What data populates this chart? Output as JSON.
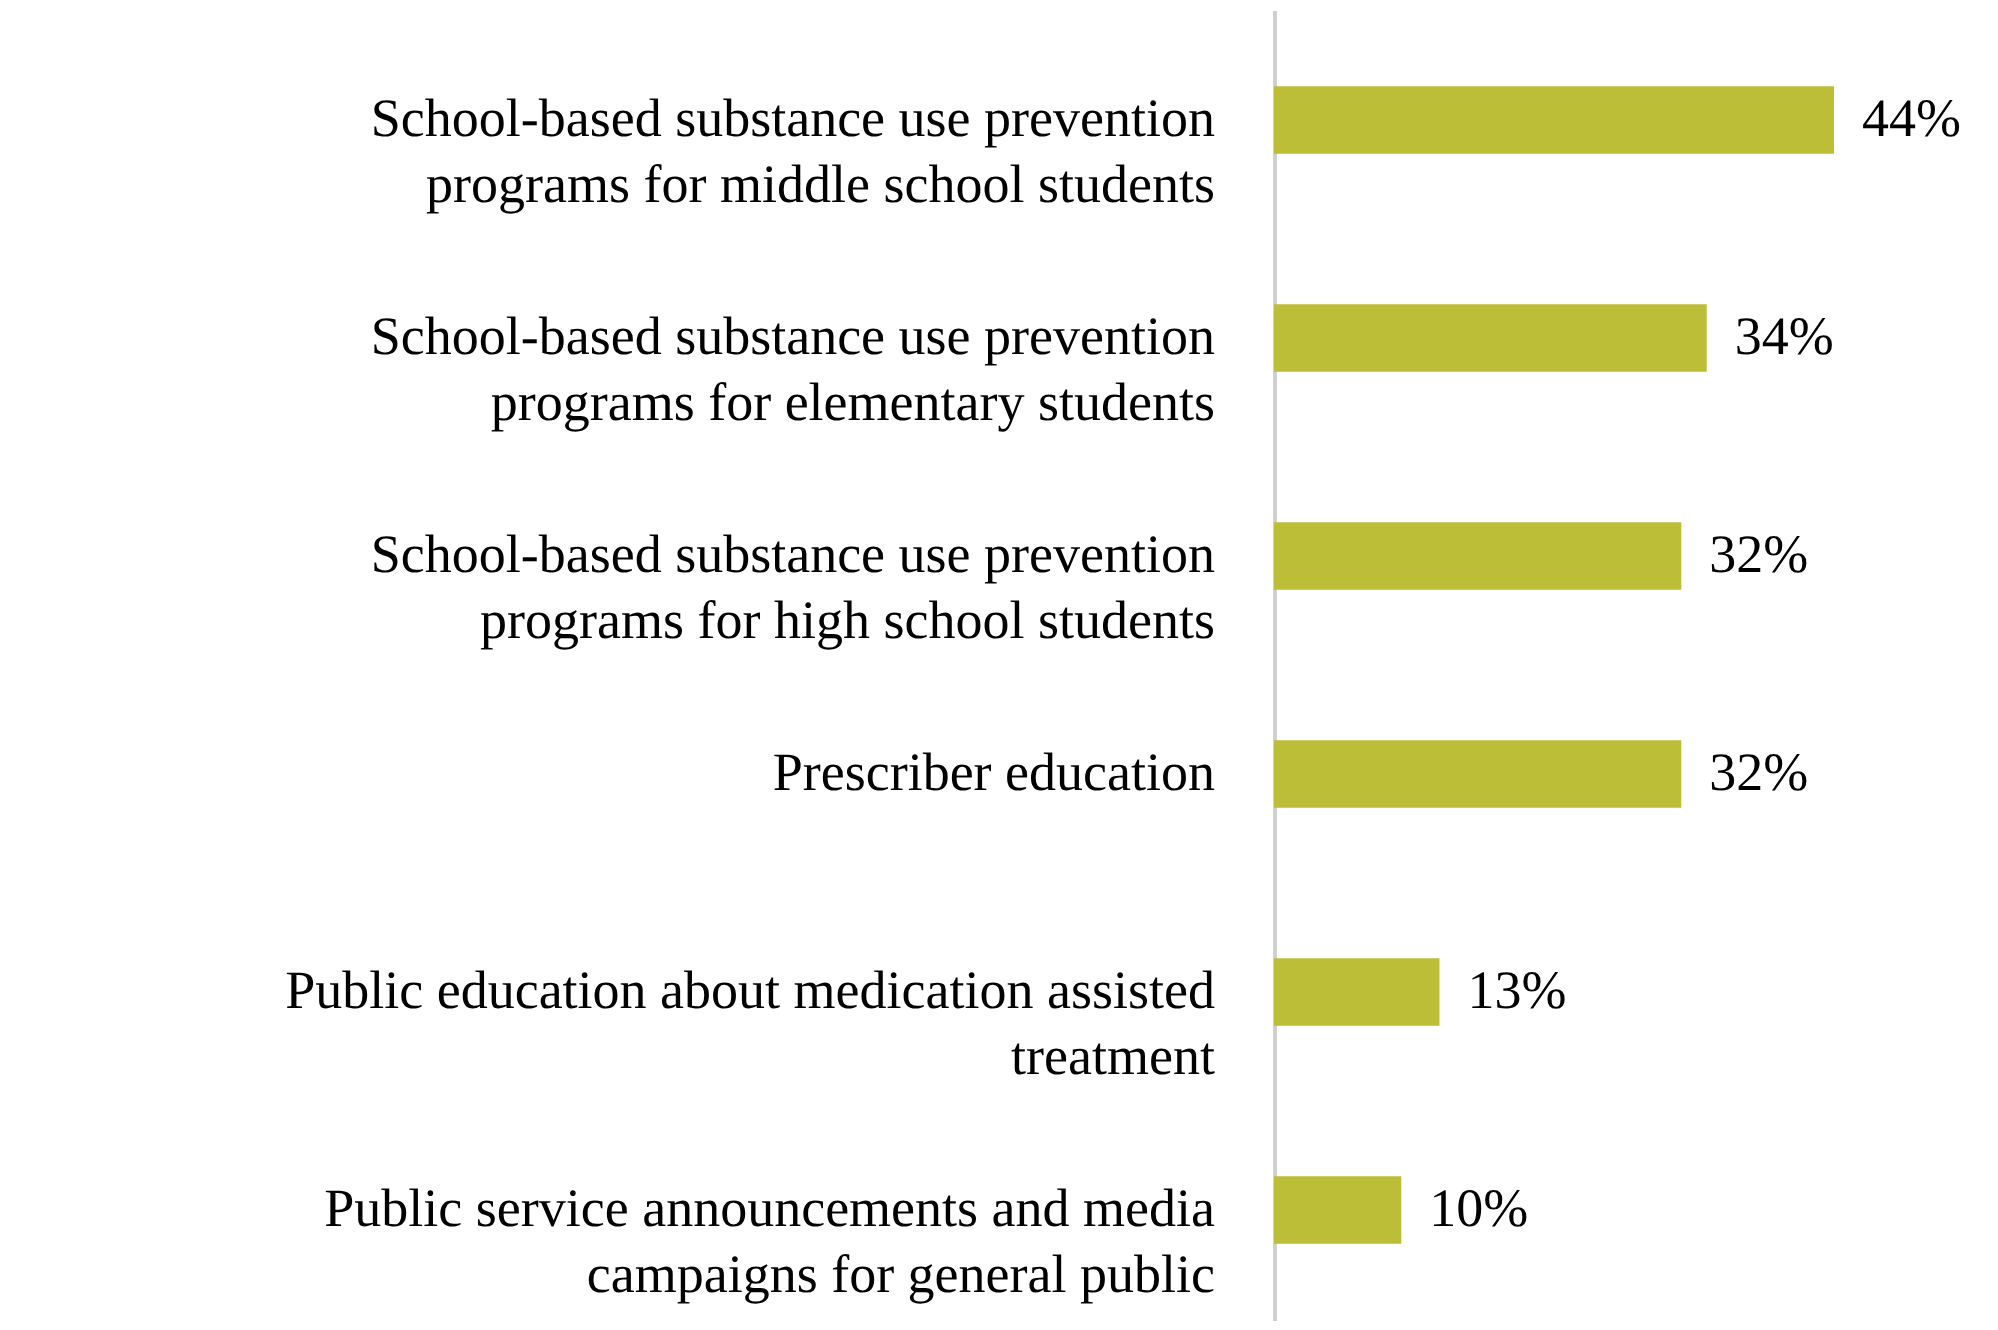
{
  "chart_data": {
    "type": "bar",
    "orientation": "horizontal",
    "categories": [
      "School-based substance use prevention programs for middle school students",
      "School-based substance use prevention programs for elementary students",
      "School-based substance use prevention programs for high school students",
      "Prescriber education",
      "Public education about medication assisted treatment",
      "Public service announcements  and media campaigns for general public"
    ],
    "values": [
      44,
      34,
      32,
      32,
      13,
      10
    ],
    "value_labels": [
      "44%",
      "34%",
      "32%",
      "32%",
      "13%",
      "10%"
    ],
    "color": "#bdbe38"
  }
}
